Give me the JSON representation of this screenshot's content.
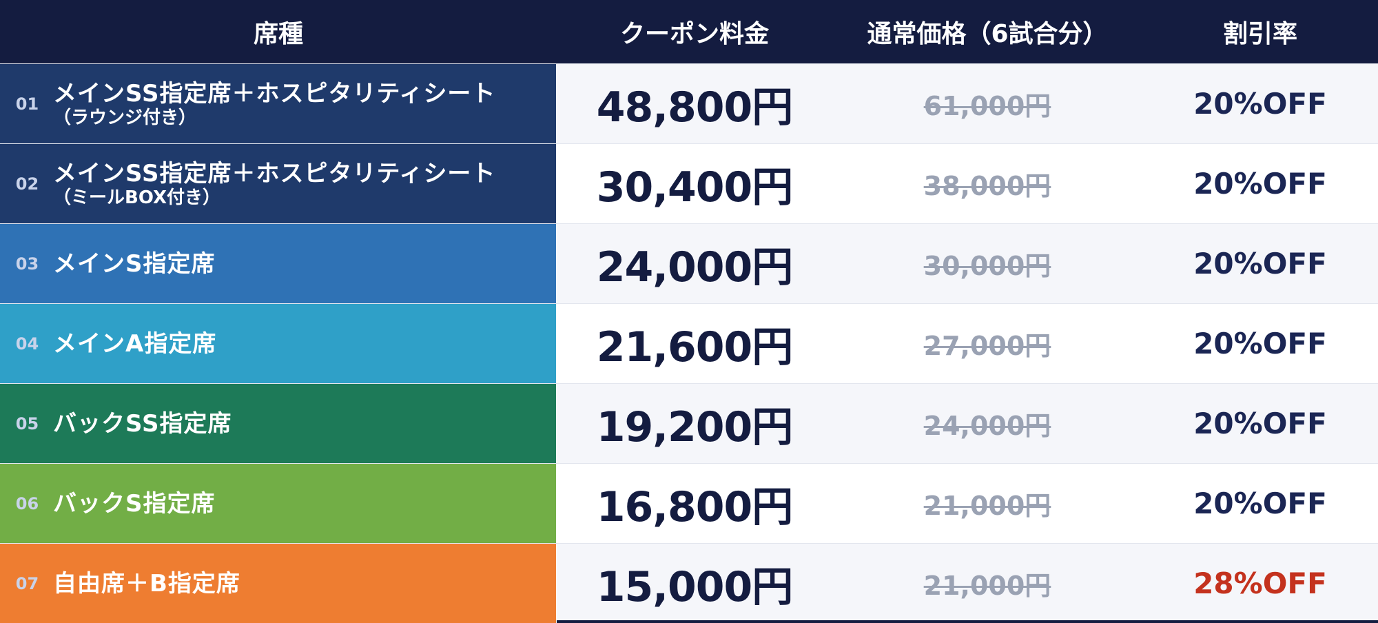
{
  "header": {
    "col_seat": "席種",
    "col_coupon": "クーポン料金",
    "col_regular": "通常価格（6試合分）",
    "col_discount": "割引率"
  },
  "rows": [
    {
      "num": "01",
      "name": "メインSS指定席＋ホスピタリティシート",
      "sub": "（ラウンジ付き）",
      "price": "48,800円",
      "regular": "61,000円",
      "discount": "20%OFF",
      "color": "#1f3a6b"
    },
    {
      "num": "02",
      "name": "メインSS指定席＋ホスピタリティシート",
      "sub": "（ミールBOX付き）",
      "price": "30,400円",
      "regular": "38,000円",
      "discount": "20%OFF",
      "color": "#1f3a6b"
    },
    {
      "num": "03",
      "name": "メインS指定席",
      "sub": "",
      "price": "24,000円",
      "regular": "30,000円",
      "discount": "20%OFF",
      "color": "#2f72b5"
    },
    {
      "num": "04",
      "name": "メインA指定席",
      "sub": "",
      "price": "21,600円",
      "regular": "27,000円",
      "discount": "20%OFF",
      "color": "#2fa0c8"
    },
    {
      "num": "05",
      "name": "バックSS指定席",
      "sub": "",
      "price": "19,200円",
      "regular": "24,000円",
      "discount": "20%OFF",
      "color": "#1d7a58"
    },
    {
      "num": "06",
      "name": "バックS指定席",
      "sub": "",
      "price": "16,800円",
      "regular": "21,000円",
      "discount": "20%OFF",
      "color": "#72ae46"
    },
    {
      "num": "07",
      "name": "自由席＋B指定席",
      "sub": "",
      "price": "15,000円",
      "regular": "21,000円",
      "discount": "28%OFF",
      "color": "#ee7d31",
      "discount_color": "#c4321e"
    }
  ]
}
